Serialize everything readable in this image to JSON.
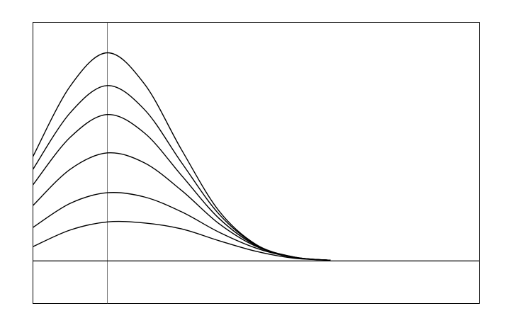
{
  "chart_data": {
    "type": "line",
    "x": [
      0,
      0.5,
      1,
      1.5,
      2,
      2.5,
      3,
      3.5,
      4
    ],
    "series": [
      {
        "color": "#000000",
        "values": [
          4.9,
          8.2,
          9.77,
          8.3,
          5.2,
          2.35,
          0.77,
          0.19,
          0.03
        ]
      },
      {
        "color": "#000000",
        "values": [
          4.3,
          6.95,
          8.23,
          7.1,
          4.6,
          2.2,
          0.75,
          0.19,
          0.03
        ]
      },
      {
        "color": "#000000",
        "values": [
          3.57,
          5.8,
          6.87,
          6.0,
          4.0,
          2.0,
          0.72,
          0.18,
          0.03
        ]
      },
      {
        "color": "#000000",
        "values": [
          2.6,
          4.3,
          5.07,
          4.6,
          3.3,
          1.75,
          0.68,
          0.17,
          0.03
        ]
      },
      {
        "color": "#000000",
        "values": [
          1.57,
          2.7,
          3.2,
          3.0,
          2.3,
          1.35,
          0.6,
          0.16,
          0.03
        ]
      },
      {
        "color": "#000000",
        "values": [
          0.67,
          1.45,
          1.83,
          1.78,
          1.5,
          0.95,
          0.45,
          0.13,
          0.03
        ]
      }
    ],
    "xlim": [
      0,
      6
    ],
    "ylim": [
      -2,
      11.2
    ],
    "vlines": [
      1
    ],
    "hlines": [
      0
    ]
  }
}
